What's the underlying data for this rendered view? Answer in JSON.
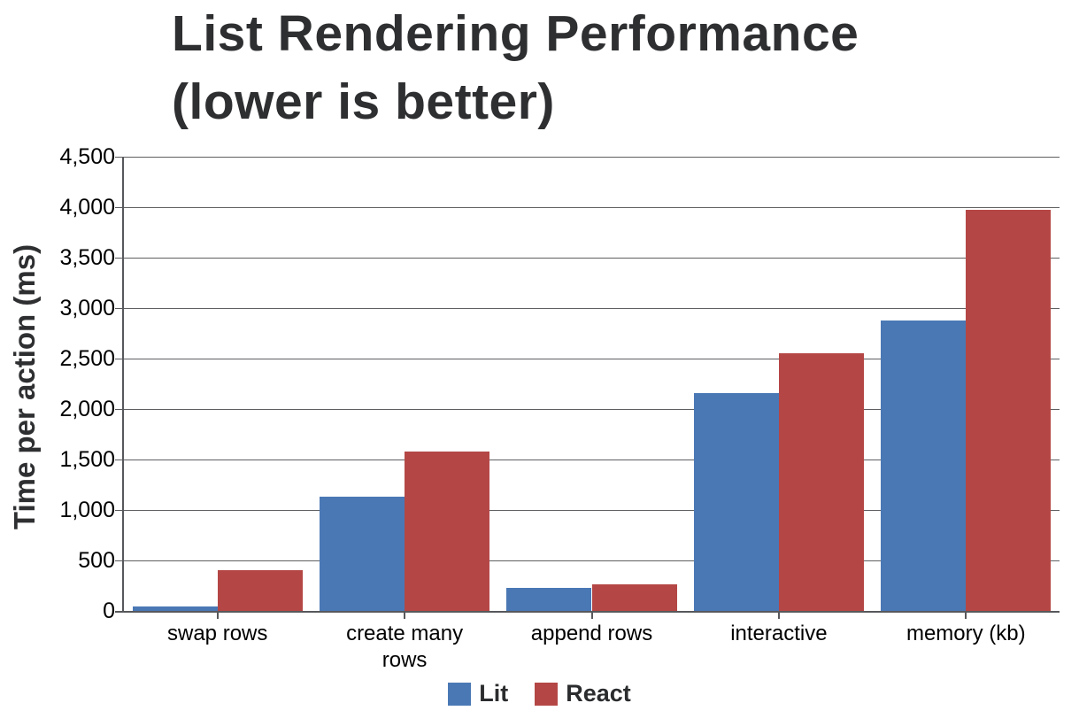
{
  "chart_data": {
    "type": "bar",
    "title_lines": [
      "List Rendering Performance",
      "(lower is better)"
    ],
    "ylabel": "Time per action (ms)",
    "categories": [
      "swap rows",
      "create many rows",
      "append rows",
      "interactive",
      "memory (kb)"
    ],
    "series": [
      {
        "name": "Lit",
        "color": "#4a78b5",
        "values": [
          45,
          1135,
          230,
          2160,
          2880
        ]
      },
      {
        "name": "React",
        "color": "#b44745",
        "values": [
          405,
          1580,
          265,
          2555,
          3975
        ]
      }
    ],
    "ylim": [
      0,
      4500
    ],
    "ytick_step": 500,
    "ytick_labels": [
      "0",
      "500",
      "1,000",
      "1,500",
      "2,000",
      "2,500",
      "3,000",
      "3,500",
      "4,000",
      "4,500"
    ],
    "grid": true,
    "legend_position": "bottom",
    "colors": {
      "axis": "#57585b",
      "grid": "#5e5f62",
      "tick_text": "#000000",
      "title_text": "#2e2f31"
    }
  }
}
